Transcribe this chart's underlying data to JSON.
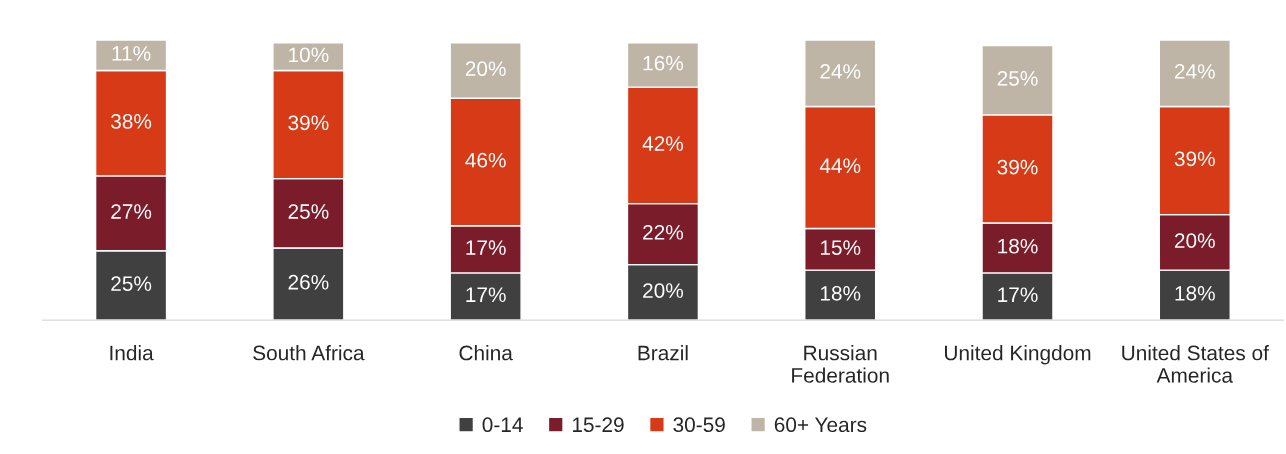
{
  "chart_data": {
    "type": "bar",
    "stacked": true,
    "legend": "bottom",
    "grid": false,
    "categories": [
      "India",
      "South Africa",
      "China",
      "Brazil",
      "Russian\nFederation",
      "United Kingdom",
      "United States of\nAmerica"
    ],
    "series": [
      {
        "name": "0-14",
        "color": "#404040",
        "values": [
          25,
          26,
          17,
          20,
          18,
          17,
          18
        ],
        "value_labels": [
          "25%",
          "26%",
          "17%",
          "20%",
          "18%",
          "17%",
          "18%"
        ]
      },
      {
        "name": "15-29",
        "color": "#7b1c2a",
        "values": [
          27,
          25,
          17,
          22,
          15,
          18,
          20
        ],
        "value_labels": [
          "27%",
          "25%",
          "17%",
          "22%",
          "15%",
          "18%",
          "20%"
        ]
      },
      {
        "name": "30-59",
        "color": "#d63a16",
        "values": [
          38,
          39,
          46,
          42,
          44,
          39,
          39
        ],
        "value_labels": [
          "38%",
          "39%",
          "46%",
          "42%",
          "44%",
          "39%",
          "39%"
        ]
      },
      {
        "name": "60+ Years",
        "color": "#bfb5a6",
        "values": [
          11,
          10,
          20,
          16,
          24,
          25,
          24
        ],
        "value_labels": [
          "11%",
          "10%",
          "20%",
          "16%",
          "24%",
          "25%",
          "24%"
        ]
      }
    ]
  }
}
